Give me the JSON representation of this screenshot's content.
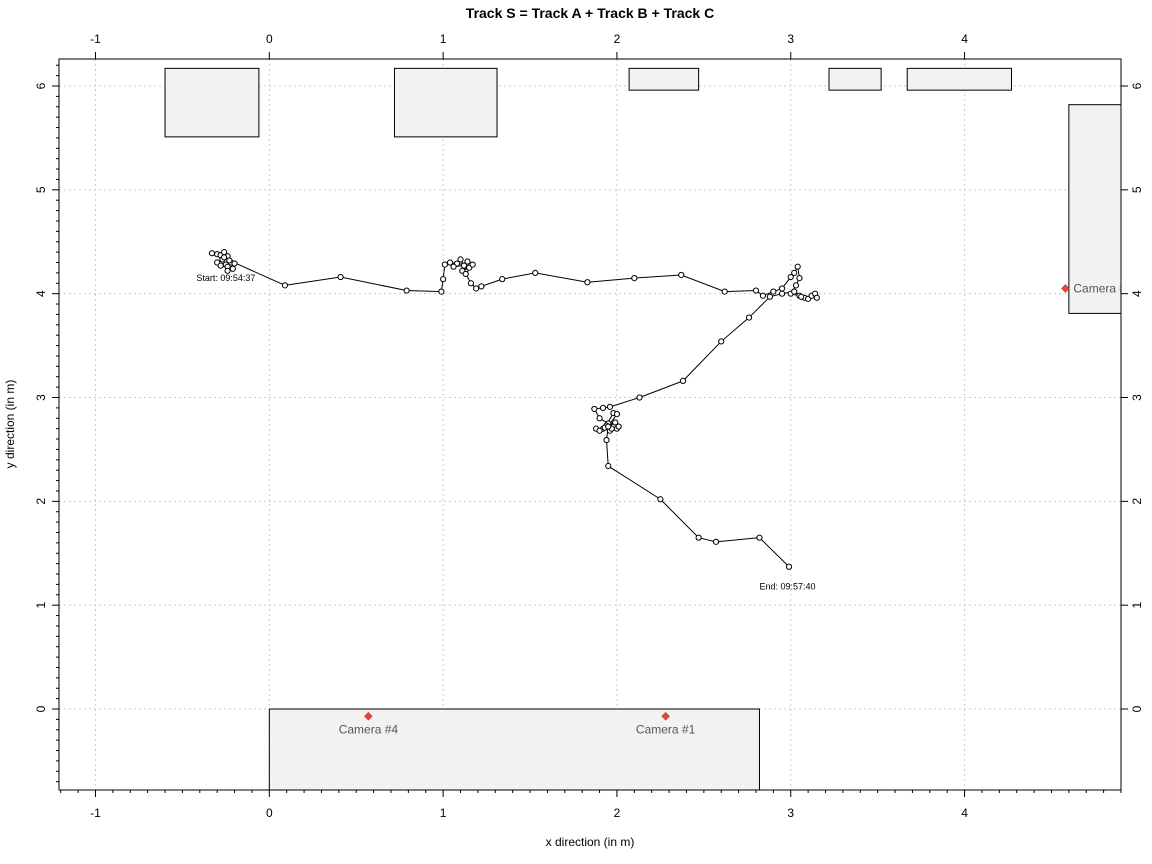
{
  "chart_data": {
    "type": "scatter",
    "title": "Track S = Track A + Track B + Track C",
    "xlabel": "x direction (in m)",
    "ylabel": "y direction (in m)",
    "xlim": [
      -1.21,
      4.9
    ],
    "ylim": [
      -0.78,
      6.26
    ],
    "x_ticks": [
      -1,
      0,
      1,
      2,
      3,
      4
    ],
    "y_ticks": [
      0,
      1,
      2,
      3,
      4,
      5,
      6
    ],
    "x_tick_labels": [
      "-1",
      "0",
      "1",
      "2",
      "3",
      "4"
    ],
    "y_tick_labels": [
      "0",
      "1",
      "2",
      "3",
      "4",
      "5",
      "6"
    ],
    "minor_tick_step": 0.1,
    "grid": true,
    "track_color": "#000000",
    "obstacle_fill": "#f2f2f2",
    "camera_color": "#e8443a",
    "track_points": [
      [
        -0.33,
        4.39
      ],
      [
        -0.3,
        4.38
      ],
      [
        -0.28,
        4.37
      ],
      [
        -0.26,
        4.4
      ],
      [
        -0.24,
        4.36
      ],
      [
        -0.27,
        4.33
      ],
      [
        -0.3,
        4.3
      ],
      [
        -0.25,
        4.28
      ],
      [
        -0.22,
        4.3
      ],
      [
        -0.24,
        4.26
      ],
      [
        -0.28,
        4.27
      ],
      [
        -0.21,
        4.24
      ],
      [
        -0.24,
        4.22
      ],
      [
        -0.2,
        4.29
      ],
      [
        -0.26,
        4.35
      ],
      [
        -0.23,
        4.32
      ],
      [
        0.09,
        4.08
      ],
      [
        0.41,
        4.16
      ],
      [
        0.79,
        4.03
      ],
      [
        0.99,
        4.02
      ],
      [
        1.0,
        4.14
      ],
      [
        1.01,
        4.28
      ],
      [
        1.04,
        4.3
      ],
      [
        1.08,
        4.29
      ],
      [
        1.1,
        4.33
      ],
      [
        1.12,
        4.27
      ],
      [
        1.06,
        4.26
      ],
      [
        1.14,
        4.31
      ],
      [
        1.15,
        4.25
      ],
      [
        1.11,
        4.22
      ],
      [
        1.17,
        4.28
      ],
      [
        1.13,
        4.19
      ],
      [
        1.16,
        4.1
      ],
      [
        1.19,
        4.05
      ],
      [
        1.22,
        4.07
      ],
      [
        1.34,
        4.14
      ],
      [
        1.53,
        4.2
      ],
      [
        1.83,
        4.11
      ],
      [
        2.1,
        4.15
      ],
      [
        2.37,
        4.18
      ],
      [
        2.62,
        4.02
      ],
      [
        2.8,
        4.03
      ],
      [
        2.84,
        3.98
      ],
      [
        2.9,
        4.02
      ],
      [
        2.95,
        4.05
      ],
      [
        3.0,
        4.16
      ],
      [
        3.02,
        4.2
      ],
      [
        3.04,
        4.26
      ],
      [
        3.05,
        4.15
      ],
      [
        3.03,
        4.08
      ],
      [
        3.0,
        4.0
      ],
      [
        3.05,
        3.98
      ],
      [
        3.08,
        3.96
      ],
      [
        3.1,
        3.95
      ],
      [
        3.12,
        3.98
      ],
      [
        3.14,
        4.0
      ],
      [
        3.15,
        3.96
      ],
      [
        3.06,
        3.97
      ],
      [
        3.02,
        4.02
      ],
      [
        2.95,
        4.0
      ],
      [
        2.88,
        3.97
      ],
      [
        2.76,
        3.77
      ],
      [
        2.6,
        3.54
      ],
      [
        2.38,
        3.16
      ],
      [
        2.13,
        3.0
      ],
      [
        1.96,
        2.91
      ],
      [
        1.92,
        2.9
      ],
      [
        1.87,
        2.89
      ],
      [
        1.9,
        2.8
      ],
      [
        1.95,
        2.75
      ],
      [
        1.98,
        2.72
      ],
      [
        2.0,
        2.7
      ],
      [
        1.96,
        2.68
      ],
      [
        1.92,
        2.7
      ],
      [
        1.88,
        2.7
      ],
      [
        1.9,
        2.68
      ],
      [
        1.94,
        2.73
      ],
      [
        1.99,
        2.76
      ],
      [
        2.01,
        2.72
      ],
      [
        1.97,
        2.7
      ],
      [
        1.93,
        2.71
      ],
      [
        1.98,
        2.85
      ],
      [
        2.0,
        2.84
      ],
      [
        1.95,
        2.72
      ],
      [
        1.94,
        2.59
      ],
      [
        1.95,
        2.34
      ],
      [
        2.25,
        2.02
      ],
      [
        2.47,
        1.65
      ],
      [
        2.57,
        1.61
      ],
      [
        2.82,
        1.65
      ],
      [
        2.99,
        1.37
      ]
    ],
    "annotations": [
      {
        "text": "Start: 09:54:37",
        "x": -0.42,
        "y": 4.12
      },
      {
        "text": "End: 09:57:40",
        "x": 2.82,
        "y": 1.15
      }
    ],
    "obstacles": [
      {
        "x1": -0.6,
        "x2": -0.06,
        "y1": 5.51,
        "y2": 6.17
      },
      {
        "x1": 0.72,
        "x2": 1.31,
        "y1": 5.51,
        "y2": 6.17
      },
      {
        "x1": 2.07,
        "x2": 2.47,
        "y1": 5.96,
        "y2": 6.17
      },
      {
        "x1": 3.22,
        "x2": 3.52,
        "y1": 5.96,
        "y2": 6.17
      },
      {
        "x1": 3.67,
        "x2": 4.27,
        "y1": 5.96,
        "y2": 6.17
      },
      {
        "x1": 4.6,
        "x2": 4.95,
        "y1": 3.81,
        "y2": 5.82
      },
      {
        "x1": 0.0,
        "x2": 2.82,
        "y1": -0.85,
        "y2": 0.0
      }
    ],
    "cameras": [
      {
        "label": "Camera #4",
        "x": 0.57,
        "y": -0.07
      },
      {
        "label": "Camera #1",
        "x": 2.28,
        "y": -0.07
      },
      {
        "label": "Camera #",
        "x": 4.58,
        "y": 4.05
      }
    ]
  }
}
